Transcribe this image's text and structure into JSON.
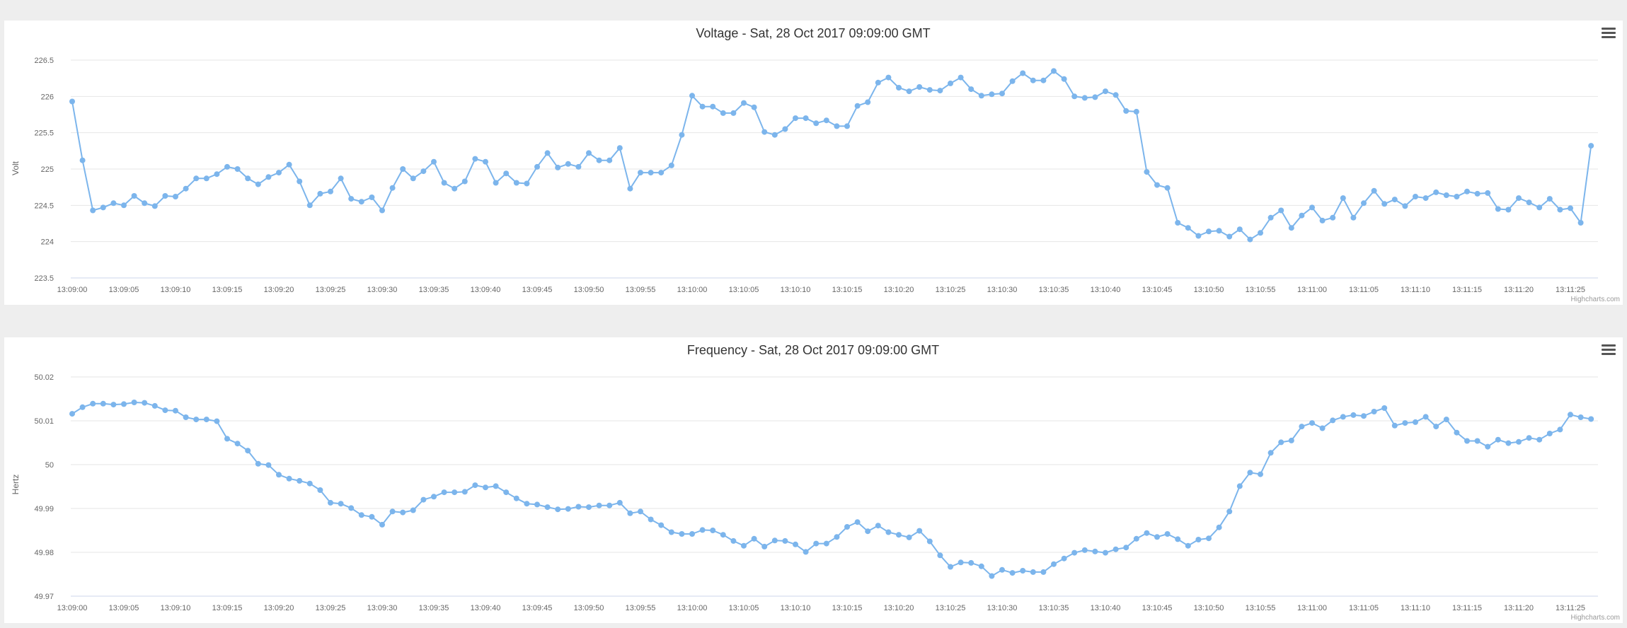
{
  "charts": [
    {
      "chart_data": {
        "type": "line",
        "title": "Voltage - Sat, 28 Oct 2017 09:09:00 GMT",
        "ylabel": "Volt",
        "xlabel": "",
        "ylim": [
          223.5,
          226.5
        ],
        "yticks": [
          "226.5",
          "226",
          "225.5",
          "225",
          "224.5",
          "224",
          "223.5"
        ],
        "ytick_values": [
          226.5,
          226,
          225.5,
          225,
          224.5,
          224,
          223.5
        ],
        "xticks": [
          "13:09:00",
          "13:09:05",
          "13:09:10",
          "13:09:15",
          "13:09:20",
          "13:09:25",
          "13:09:30",
          "13:09:35",
          "13:09:40",
          "13:09:45",
          "13:09:50",
          "13:09:55",
          "13:10:00",
          "13:10:05",
          "13:10:10",
          "13:10:15",
          "13:10:20",
          "13:10:25",
          "13:10:30",
          "13:10:35",
          "13:10:40",
          "13:10:45",
          "13:10:50",
          "13:10:55",
          "13:11:00",
          "13:11:05",
          "13:11:10",
          "13:11:15",
          "13:11:20",
          "13:11:25"
        ],
        "x_start": "13:09:00",
        "x_end": "13:11:29",
        "x_interval": "1s",
        "grid": true,
        "series_color": "#7cb5ec",
        "values": [
          225.93,
          225.12,
          224.43,
          224.47,
          224.53,
          224.5,
          224.63,
          224.53,
          224.49,
          224.63,
          224.62,
          224.73,
          224.87,
          224.87,
          224.93,
          225.03,
          225.0,
          224.87,
          224.79,
          224.89,
          224.95,
          225.06,
          224.83,
          224.5,
          224.66,
          224.69,
          224.87,
          224.59,
          224.55,
          224.61,
          224.43,
          224.74,
          225.0,
          224.87,
          224.97,
          225.1,
          224.81,
          224.73,
          224.83,
          225.14,
          225.1,
          224.81,
          224.94,
          224.81,
          224.8,
          225.03,
          225.22,
          225.02,
          225.07,
          225.03,
          225.22,
          225.12,
          225.12,
          225.29,
          224.73,
          224.95,
          224.95,
          224.95,
          225.05,
          225.47,
          226.01,
          225.86,
          225.86,
          225.77,
          225.77,
          225.91,
          225.85,
          225.51,
          225.47,
          225.55,
          225.7,
          225.7,
          225.63,
          225.67,
          225.59,
          225.59,
          225.87,
          225.92,
          226.19,
          226.26,
          226.12,
          226.07,
          226.13,
          226.09,
          226.08,
          226.18,
          226.26,
          226.1,
          226.01,
          226.03,
          226.04,
          226.21,
          226.32,
          226.22,
          226.22,
          226.35,
          226.24,
          226.0,
          225.98,
          225.99,
          226.07,
          226.02,
          225.8,
          225.79,
          224.96,
          224.78,
          224.74,
          224.26,
          224.19,
          224.08,
          224.14,
          224.15,
          224.07,
          224.17,
          224.03,
          224.12,
          224.33,
          224.43,
          224.19,
          224.36,
          224.47,
          224.29,
          224.33,
          224.6,
          224.33,
          224.53,
          224.7,
          224.52,
          224.58,
          224.49,
          224.62,
          224.6,
          224.68,
          224.64,
          224.62,
          224.69,
          224.66,
          224.67,
          224.45,
          224.44,
          224.6,
          224.54,
          224.47,
          224.59,
          224.44,
          224.46,
          224.26,
          225.32
        ]
      },
      "menu_icon": "hamburger-menu-icon",
      "credits": "Highcharts.com"
    },
    {
      "chart_data": {
        "type": "line",
        "title": "Frequency - Sat, 28 Oct 2017 09:09:00 GMT",
        "ylabel": "Hertz",
        "xlabel": "",
        "ylim": [
          49.97,
          50.02
        ],
        "yticks": [
          "50.02",
          "50.01",
          "50",
          "49.99",
          "49.98",
          "49.97"
        ],
        "ytick_values": [
          50.02,
          50.01,
          50.0,
          49.99,
          49.98,
          49.97
        ],
        "xticks": [
          "13:09:00",
          "13:09:05",
          "13:09:10",
          "13:09:15",
          "13:09:20",
          "13:09:25",
          "13:09:30",
          "13:09:35",
          "13:09:40",
          "13:09:45",
          "13:09:50",
          "13:09:55",
          "13:10:00",
          "13:10:05",
          "13:10:10",
          "13:10:15",
          "13:10:20",
          "13:10:25",
          "13:10:30",
          "13:10:35",
          "13:10:40",
          "13:10:45",
          "13:10:50",
          "13:10:55",
          "13:11:00",
          "13:11:05",
          "13:11:10",
          "13:11:15",
          "13:11:20",
          "13:11:25"
        ],
        "x_start": "13:09:00",
        "x_end": "13:11:29",
        "x_interval": "1s",
        "grid": true,
        "series_color": "#7cb5ec",
        "values": [
          50.0116,
          50.0131,
          50.0139,
          50.0139,
          50.0137,
          50.0138,
          50.0142,
          50.0141,
          50.0134,
          50.0124,
          50.0123,
          50.0108,
          50.0103,
          50.0103,
          50.0099,
          50.0059,
          50.0048,
          50.0032,
          50.0002,
          49.9999,
          49.9977,
          49.9968,
          49.9963,
          49.9957,
          49.9942,
          49.9913,
          49.9911,
          49.9901,
          49.9885,
          49.9881,
          49.9863,
          49.9893,
          49.9891,
          49.9896,
          49.992,
          49.9927,
          49.9937,
          49.9937,
          49.9938,
          49.9953,
          49.9948,
          49.9951,
          49.9937,
          49.9923,
          49.9911,
          49.9909,
          49.9903,
          49.9898,
          49.9899,
          49.9904,
          49.9903,
          49.9907,
          49.9907,
          49.9913,
          49.9889,
          49.9893,
          49.9875,
          49.9862,
          49.9846,
          49.9842,
          49.9842,
          49.9851,
          49.985,
          49.984,
          49.9826,
          49.9815,
          49.9831,
          49.9813,
          49.9827,
          49.9826,
          49.9818,
          49.9801,
          49.982,
          49.982,
          49.9835,
          49.9858,
          49.9869,
          49.9848,
          49.9861,
          49.9846,
          49.984,
          49.9834,
          49.9849,
          49.9825,
          49.9793,
          49.9767,
          49.9777,
          49.9776,
          49.9768,
          49.9746,
          49.976,
          49.9753,
          49.9758,
          49.9755,
          49.9755,
          49.9773,
          49.9786,
          49.9799,
          49.9805,
          49.9802,
          49.9799,
          49.9807,
          49.9811,
          49.9831,
          49.9844,
          49.9835,
          49.9842,
          49.983,
          49.9815,
          49.9829,
          49.9832,
          49.9857,
          49.9893,
          49.9951,
          49.9982,
          49.9978,
          50.0027,
          50.0051,
          50.0055,
          50.0087,
          50.0095,
          50.0083,
          50.0101,
          50.0109,
          50.0113,
          50.0111,
          50.0121,
          50.0129,
          50.0089,
          50.0095,
          50.0097,
          50.0109,
          50.0087,
          50.0103,
          50.0073,
          50.0054,
          50.0054,
          50.0041,
          50.0057,
          50.0049,
          50.0052,
          50.0061,
          50.0057,
          50.0071,
          50.008,
          50.0114,
          50.0108,
          50.0104
        ]
      },
      "menu_icon": "hamburger-menu-icon",
      "credits": "Highcharts.com"
    }
  ]
}
